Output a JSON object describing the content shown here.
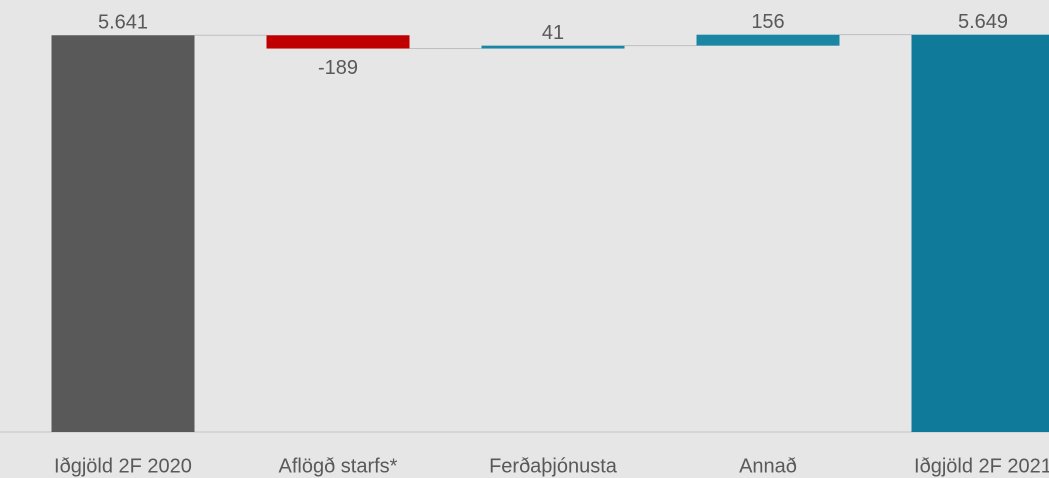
{
  "chart_data": {
    "type": "waterfall",
    "categories": [
      "Iðgjöld 2F 2020",
      "Aflögð starfs*",
      "Ferðaþjónusta",
      "Annað",
      "Iðgjöld 2F 2021"
    ],
    "values": [
      5641,
      -189,
      41,
      156,
      5649
    ],
    "value_labels": [
      "5.641",
      "-189",
      "41",
      "156",
      "5.649"
    ],
    "totals": [
      0,
      4
    ],
    "colors": [
      "#595959",
      "#c00000",
      "#1b86a3",
      "#1b86a3",
      "#0f7a9a"
    ],
    "ylim": [
      0,
      6000
    ]
  }
}
